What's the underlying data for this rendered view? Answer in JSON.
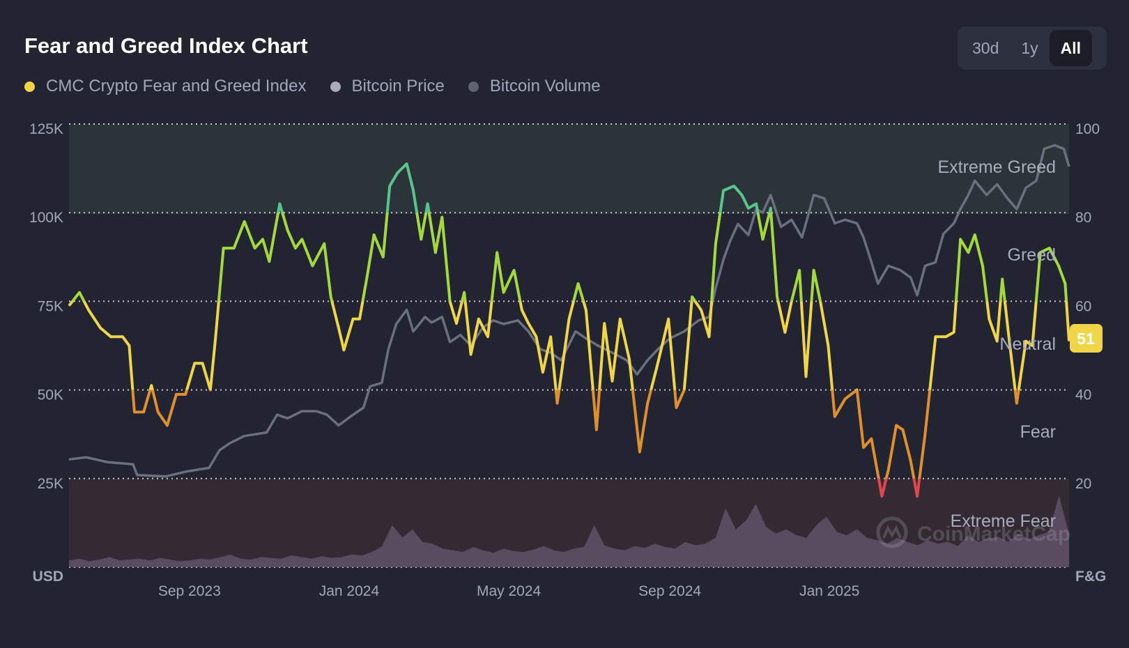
{
  "header": {
    "title": "Fear and Greed Index Chart",
    "ranges": [
      {
        "label": "30d",
        "active": false
      },
      {
        "label": "1y",
        "active": false
      },
      {
        "label": "All",
        "active": true
      }
    ]
  },
  "legend": [
    {
      "label": "CMC Crypto Fear and Greed Index",
      "color": "#f0d548"
    },
    {
      "label": "Bitcoin Price",
      "color": "#a9adbb"
    },
    {
      "label": "Bitcoin Volume",
      "color": "#5e6272"
    }
  ],
  "watermark": "CoinMarketCap",
  "chart_data": {
    "type": "line",
    "title": "Fear and Greed Index Chart",
    "x_unit": "days since start (approx. Jun 2023 – Jul 2025)",
    "x_range": [
      0,
      764
    ],
    "x_ticks": [
      {
        "label": "Sep 2023",
        "day": 92
      },
      {
        "label": "Jan 2024",
        "day": 214
      },
      {
        "label": "May 2024",
        "day": 336
      },
      {
        "label": "Sep 2024",
        "day": 459
      },
      {
        "label": "Jan 2025",
        "day": 581
      }
    ],
    "left_axis": {
      "label": "USD",
      "range": [
        0,
        125
      ],
      "ticks": [
        "125K",
        "100K",
        "75K",
        "50K",
        "25K"
      ],
      "tick_values": [
        125,
        100,
        75,
        50,
        25
      ]
    },
    "right_axis": {
      "label": "F&G",
      "range": [
        0,
        100
      ],
      "ticks": [
        "100",
        "80",
        "60",
        "40",
        "20"
      ],
      "tick_values": [
        100,
        80,
        60,
        40,
        20
      ]
    },
    "zones": [
      {
        "label": "Extreme Greed",
        "range": [
          80,
          100
        ],
        "fill": "#2b3539"
      },
      {
        "label": "Greed",
        "range": [
          60,
          80
        ]
      },
      {
        "label": "Neutral",
        "range": [
          40,
          60
        ]
      },
      {
        "label": "Fear",
        "range": [
          20,
          40
        ]
      },
      {
        "label": "Extreme Fear",
        "range": [
          0,
          20
        ],
        "fill": "#342a33"
      }
    ],
    "current_value": "51",
    "zone_colors": {
      "extreme_fear": "#e0474c",
      "fear": "#e08f2e",
      "neutral": "#f0d548",
      "greed": "#a3d93f",
      "extreme_greed": "#5bc48c"
    },
    "series": [
      {
        "name": "CMC Crypto Fear and Greed Index",
        "axis": "right",
        "points": [
          [
            0,
            59
          ],
          [
            8,
            62
          ],
          [
            15,
            58
          ],
          [
            24,
            54
          ],
          [
            32,
            52
          ],
          [
            41,
            52
          ],
          [
            46,
            50
          ],
          [
            50,
            35
          ],
          [
            57,
            35
          ],
          [
            63,
            41
          ],
          [
            68,
            35
          ],
          [
            75,
            32
          ],
          [
            82,
            39
          ],
          [
            89,
            39
          ],
          [
            96,
            46
          ],
          [
            102,
            46
          ],
          [
            108,
            40
          ],
          [
            112,
            52
          ],
          [
            118,
            72
          ],
          [
            126,
            72
          ],
          [
            134,
            78
          ],
          [
            142,
            72
          ],
          [
            148,
            74
          ],
          [
            153,
            69
          ],
          [
            161,
            82
          ],
          [
            167,
            76
          ],
          [
            173,
            72
          ],
          [
            178,
            74
          ],
          [
            186,
            68
          ],
          [
            195,
            73
          ],
          [
            200,
            61
          ],
          [
            206,
            54
          ],
          [
            210,
            49
          ],
          [
            217,
            56
          ],
          [
            222,
            56
          ],
          [
            228,
            66
          ],
          [
            233,
            75
          ],
          [
            240,
            70
          ],
          [
            245,
            86
          ],
          [
            251,
            89
          ],
          [
            258,
            91
          ],
          [
            263,
            85
          ],
          [
            269,
            74
          ],
          [
            274,
            82
          ],
          [
            280,
            71
          ],
          [
            285,
            79
          ],
          [
            291,
            60
          ],
          [
            296,
            55
          ],
          [
            302,
            62
          ],
          [
            307,
            48
          ],
          [
            313,
            56
          ],
          [
            320,
            52
          ],
          [
            327,
            71
          ],
          [
            332,
            62
          ],
          [
            340,
            67
          ],
          [
            346,
            58
          ],
          [
            351,
            55
          ],
          [
            357,
            52
          ],
          [
            362,
            44
          ],
          [
            368,
            52
          ],
          [
            373,
            37
          ],
          [
            382,
            56
          ],
          [
            389,
            64
          ],
          [
            395,
            58
          ],
          [
            403,
            31
          ],
          [
            409,
            55
          ],
          [
            415,
            42
          ],
          [
            421,
            56
          ],
          [
            428,
            47
          ],
          [
            436,
            26
          ],
          [
            442,
            37
          ],
          [
            449,
            45
          ],
          [
            458,
            56
          ],
          [
            464,
            36
          ],
          [
            470,
            40
          ],
          [
            476,
            61
          ],
          [
            483,
            58
          ],
          [
            489,
            52
          ],
          [
            494,
            73
          ],
          [
            500,
            85
          ],
          [
            508,
            86
          ],
          [
            514,
            84
          ],
          [
            519,
            81
          ],
          [
            525,
            82
          ],
          [
            530,
            74
          ],
          [
            536,
            81
          ],
          [
            541,
            61
          ],
          [
            547,
            53
          ],
          [
            552,
            60
          ],
          [
            558,
            67
          ],
          [
            563,
            43
          ],
          [
            569,
            67
          ],
          [
            574,
            60
          ],
          [
            580,
            50
          ],
          [
            585,
            34
          ],
          [
            593,
            38
          ],
          [
            602,
            40
          ],
          [
            607,
            27
          ],
          [
            613,
            29
          ],
          [
            621,
            16
          ],
          [
            626,
            22
          ],
          [
            632,
            32
          ],
          [
            637,
            31
          ],
          [
            643,
            24
          ],
          [
            648,
            16
          ],
          [
            654,
            30
          ],
          [
            662,
            52
          ],
          [
            670,
            52
          ],
          [
            676,
            53
          ],
          [
            681,
            74
          ],
          [
            687,
            71
          ],
          [
            692,
            75
          ],
          [
            698,
            68
          ],
          [
            703,
            56
          ],
          [
            709,
            51
          ],
          [
            713,
            65
          ],
          [
            718,
            52
          ],
          [
            724,
            37
          ],
          [
            731,
            51
          ],
          [
            736,
            50
          ],
          [
            742,
            71
          ],
          [
            749,
            72
          ],
          [
            756,
            68
          ],
          [
            761,
            64
          ],
          [
            764,
            51
          ]
        ]
      },
      {
        "name": "Bitcoin Price",
        "axis": "left",
        "unit": "K USD",
        "color": "#6b7080",
        "points": [
          [
            0,
            30.4
          ],
          [
            13,
            31
          ],
          [
            30,
            29.6
          ],
          [
            49,
            29
          ],
          [
            52,
            26
          ],
          [
            74,
            25.6
          ],
          [
            90,
            27
          ],
          [
            107,
            28
          ],
          [
            115,
            33
          ],
          [
            123,
            35
          ],
          [
            134,
            37
          ],
          [
            151,
            38
          ],
          [
            159,
            43
          ],
          [
            167,
            42
          ],
          [
            178,
            44
          ],
          [
            189,
            44
          ],
          [
            197,
            43
          ],
          [
            206,
            40
          ],
          [
            217,
            43
          ],
          [
            225,
            45
          ],
          [
            230,
            51
          ],
          [
            239,
            52
          ],
          [
            244,
            61.5
          ],
          [
            250,
            68.6
          ],
          [
            258,
            72.6
          ],
          [
            263,
            66.5
          ],
          [
            272,
            70.6
          ],
          [
            277,
            69
          ],
          [
            285,
            70.6
          ],
          [
            291,
            63.5
          ],
          [
            299,
            65.5
          ],
          [
            307,
            62.5
          ],
          [
            316,
            67.5
          ],
          [
            324,
            69.6
          ],
          [
            332,
            68.6
          ],
          [
            343,
            69.6
          ],
          [
            351,
            66.5
          ],
          [
            360,
            61.5
          ],
          [
            368,
            60.5
          ],
          [
            376,
            58.4
          ],
          [
            387,
            66.5
          ],
          [
            395,
            64.5
          ],
          [
            404,
            62.5
          ],
          [
            415,
            60.5
          ],
          [
            426,
            58.4
          ],
          [
            434,
            54.4
          ],
          [
            442,
            58.4
          ],
          [
            450,
            61.5
          ],
          [
            459,
            64.5
          ],
          [
            470,
            66.5
          ],
          [
            481,
            69.6
          ],
          [
            489,
            70.6
          ],
          [
            494,
            78.7
          ],
          [
            500,
            86.8
          ],
          [
            505,
            91.9
          ],
          [
            511,
            96.8
          ],
          [
            519,
            93.7
          ],
          [
            525,
            101
          ],
          [
            530,
            100
          ],
          [
            536,
            105
          ],
          [
            544,
            96
          ],
          [
            552,
            98
          ],
          [
            560,
            93
          ],
          [
            569,
            105
          ],
          [
            577,
            104
          ],
          [
            585,
            97
          ],
          [
            593,
            98
          ],
          [
            602,
            97
          ],
          [
            607,
            93
          ],
          [
            613,
            86
          ],
          [
            618,
            80
          ],
          [
            626,
            85
          ],
          [
            635,
            83.8
          ],
          [
            643,
            81.7
          ],
          [
            648,
            76.7
          ],
          [
            654,
            85
          ],
          [
            662,
            86
          ],
          [
            668,
            94
          ],
          [
            676,
            97
          ],
          [
            681,
            101
          ],
          [
            687,
            105
          ],
          [
            692,
            109
          ],
          [
            701,
            105
          ],
          [
            709,
            108
          ],
          [
            717,
            104
          ],
          [
            724,
            101
          ],
          [
            731,
            107
          ],
          [
            739,
            109
          ],
          [
            745,
            118
          ],
          [
            753,
            119
          ],
          [
            760,
            118
          ],
          [
            764,
            113
          ]
        ]
      },
      {
        "name": "Bitcoin Volume",
        "axis": "none",
        "unit": "relative (0-100)",
        "color": "#5d5066",
        "values": [
          8,
          10,
          7,
          9,
          12,
          8,
          9,
          10,
          8,
          11,
          9,
          7,
          8,
          10,
          9,
          12,
          15,
          10,
          9,
          12,
          11,
          10,
          14,
          12,
          10,
          13,
          11,
          12,
          15,
          14,
          18,
          25,
          50,
          35,
          45,
          30,
          28,
          22,
          20,
          18,
          24,
          20,
          17,
          22,
          19,
          18,
          21,
          25,
          20,
          18,
          22,
          24,
          50,
          26,
          22,
          20,
          25,
          23,
          28,
          24,
          22,
          30,
          26,
          28,
          35,
          70,
          45,
          55,
          75,
          48,
          40,
          45,
          38,
          35,
          50,
          60,
          42,
          38,
          45,
          35,
          32,
          28,
          35,
          30,
          26,
          32,
          28,
          30,
          25,
          38,
          30,
          34,
          36,
          30,
          40,
          33,
          38,
          42,
          85,
          40
        ]
      }
    ]
  }
}
